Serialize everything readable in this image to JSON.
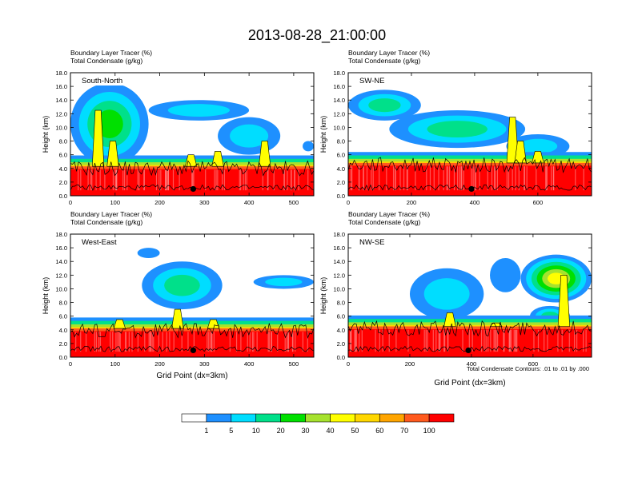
{
  "figure": {
    "title": "2013-08-28_21:00:00",
    "contour_note": "Total Condensate Contours: .01 to .01 by .000"
  },
  "colorbar": {
    "labels": [
      "1",
      "5",
      "10",
      "20",
      "30",
      "40",
      "50",
      "60",
      "70",
      "100"
    ],
    "colors": [
      "#ffffff",
      "#1e90ff",
      "#00ddff",
      "#00e08a",
      "#00e000",
      "#a6e22e",
      "#ffff00",
      "#ffd700",
      "#ffa500",
      "#ff5a1e",
      "#ff0000"
    ]
  },
  "chart_data": [
    {
      "type": "heatmap",
      "header1": "Boundary Layer Tracer   (%)",
      "header2": "Total Condensate   (g/kg)",
      "label": "South-North",
      "ylabel": "Height (km)",
      "xlabel": "",
      "xlim": [
        0,
        545
      ],
      "ylim": [
        0,
        18
      ],
      "xticks": [
        "0",
        "100",
        "200",
        "300",
        "400",
        "500"
      ],
      "yticks": [
        "0.0",
        "2.0",
        "4.0",
        "6.0",
        "8.0",
        "10.0",
        "12.0",
        "14.0",
        "16.0",
        "18.0"
      ],
      "marker_x": 275,
      "bl_top_km": 4.3,
      "spikes": [
        [
          62,
          12.5
        ],
        [
          95,
          8.0
        ],
        [
          270,
          6.0
        ],
        [
          330,
          6.5
        ],
        [
          435,
          8.0
        ]
      ],
      "anvils": [
        {
          "x0": 0,
          "x1": 175,
          "ytop": 16.5,
          "ybot": 4.5,
          "c": 4
        },
        {
          "x0": 175,
          "x1": 400,
          "ytop": 14.0,
          "ybot": 11.0,
          "c": 2
        },
        {
          "x0": 330,
          "x1": 470,
          "ytop": 11.5,
          "ybot": 6.0,
          "c": 2
        },
        {
          "x0": 520,
          "x1": 545,
          "ytop": 8.0,
          "ybot": 6.5,
          "c": 1
        }
      ]
    },
    {
      "type": "heatmap",
      "header1": "Boundary Layer Tracer   (%)",
      "header2": "Total Condensate   (g/kg)",
      "label": "SW-NE",
      "ylabel": "Height (km)",
      "xlabel": "",
      "xlim": [
        0,
        770
      ],
      "ylim": [
        0,
        18
      ],
      "xticks": [
        "0",
        "200",
        "400",
        "600"
      ],
      "yticks": [
        "0.0",
        "2.0",
        "4.0",
        "6.0",
        "8.0",
        "10.0",
        "12.0",
        "14.0",
        "16.0",
        "18.0"
      ],
      "marker_x": 390,
      "bl_top_km": 4.8,
      "spikes": [
        [
          520,
          11.5
        ],
        [
          545,
          8.0
        ],
        [
          600,
          6.5
        ]
      ],
      "anvils": [
        {
          "x0": 0,
          "x1": 230,
          "ytop": 15.5,
          "ybot": 11.0,
          "c": 3
        },
        {
          "x0": 130,
          "x1": 560,
          "ytop": 12.5,
          "ybot": 7.0,
          "c": 3
        },
        {
          "x0": 500,
          "x1": 700,
          "ytop": 9.0,
          "ybot": 5.5,
          "c": 2
        },
        {
          "x0": 0,
          "x1": 220,
          "ytop": 5.5,
          "ybot": 0.5,
          "c": 8
        }
      ]
    },
    {
      "type": "heatmap",
      "header1": "Boundary Layer Tracer   (%)",
      "header2": "Total Condensate   (g/kg)",
      "label": "West-East",
      "ylabel": "Height (km)",
      "xlabel": "Grid Point (dx=3km)",
      "xlim": [
        0,
        545
      ],
      "ylim": [
        0,
        18
      ],
      "xticks": [
        "0",
        "100",
        "200",
        "300",
        "400",
        "500"
      ],
      "yticks": [
        "0.0",
        "2.0",
        "4.0",
        "6.0",
        "8.0",
        "10.0",
        "12.0",
        "14.0",
        "16.0",
        "18.0"
      ],
      "marker_x": 275,
      "bl_top_km": 4.2,
      "spikes": [
        [
          110,
          5.5
        ],
        [
          240,
          7.0
        ],
        [
          320,
          5.5
        ]
      ],
      "anvils": [
        {
          "x0": 160,
          "x1": 340,
          "ytop": 14.0,
          "ybot": 7.0,
          "c": 3
        },
        {
          "x0": 410,
          "x1": 545,
          "ytop": 12.0,
          "ybot": 10.0,
          "c": 2
        },
        {
          "x0": 150,
          "x1": 200,
          "ytop": 16.0,
          "ybot": 14.5,
          "c": 1
        },
        {
          "x0": 0,
          "x1": 50,
          "ytop": 2.0,
          "ybot": 0.0,
          "c": 4
        }
      ]
    },
    {
      "type": "heatmap",
      "header1": "Boundary Layer Tracer   (%)",
      "header2": "Total Condensate   (g/kg)",
      "label": "NW-SE",
      "ylabel": "Height (km)",
      "xlabel": "Grid Point (dx=3km)",
      "xlim": [
        0,
        790
      ],
      "ylim": [
        0,
        18
      ],
      "xticks": [
        "0",
        "200",
        "400",
        "600"
      ],
      "yticks": [
        "0.0",
        "2.0",
        "4.0",
        "6.0",
        "8.0",
        "10.0",
        "12.0",
        "14.0",
        "16.0",
        "18.0"
      ],
      "marker_x": 390,
      "bl_top_km": 4.5,
      "spikes": [
        [
          330,
          6.5
        ],
        [
          480,
          5.0
        ],
        [
          700,
          12.0
        ]
      ],
      "anvils": [
        {
          "x0": 560,
          "x1": 790,
          "ytop": 15.0,
          "ybot": 8.0,
          "c": 6
        },
        {
          "x0": 200,
          "x1": 440,
          "ytop": 13.0,
          "ybot": 5.5,
          "c": 2
        },
        {
          "x0": 460,
          "x1": 560,
          "ytop": 14.5,
          "ybot": 9.5,
          "c": 1
        },
        {
          "x0": 590,
          "x1": 720,
          "ytop": 7.5,
          "ybot": 4.5,
          "c": 3
        }
      ]
    }
  ]
}
